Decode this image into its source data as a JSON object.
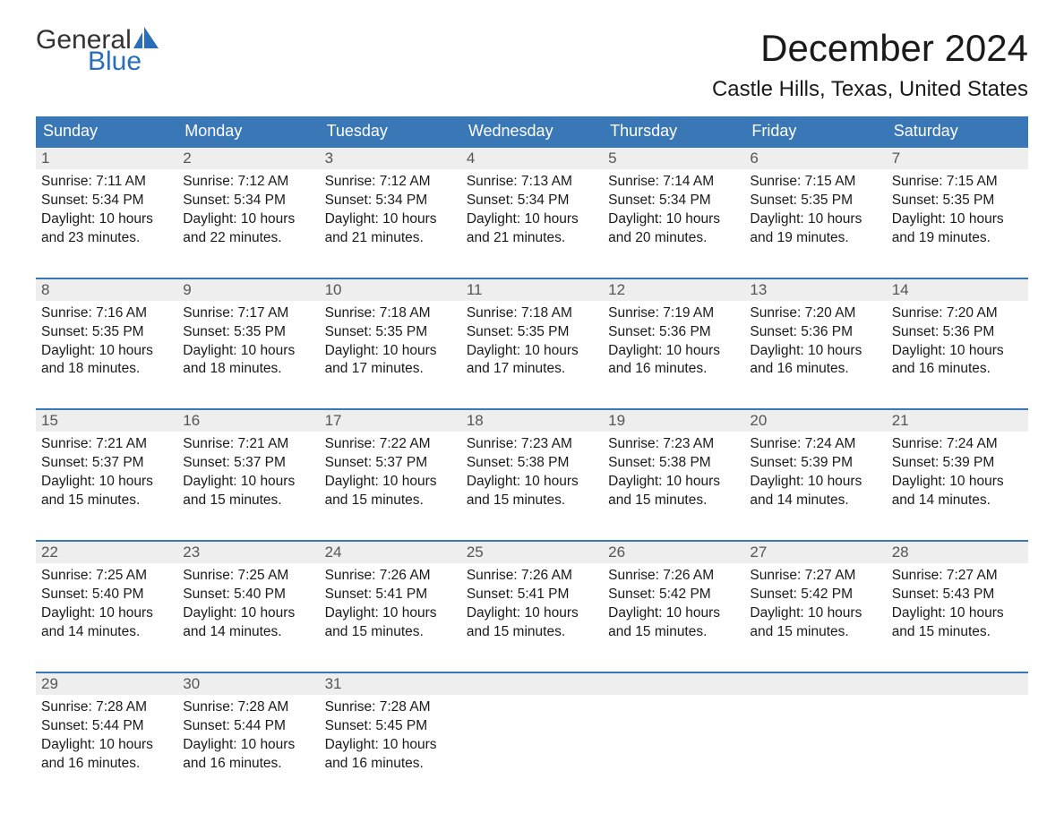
{
  "brand": {
    "word1": "General",
    "word2": "Blue",
    "accent_color": "#2a6db8"
  },
  "title": "December 2024",
  "location": "Castle Hills, Texas, United States",
  "colors": {
    "header_bg": "#3a77b7",
    "header_text": "#ffffff",
    "daynum_bg": "#eeeeee",
    "border": "#3a77b7",
    "body_text": "#1a1a1a"
  },
  "days_of_week": [
    "Sunday",
    "Monday",
    "Tuesday",
    "Wednesday",
    "Thursday",
    "Friday",
    "Saturday"
  ],
  "labels": {
    "sunrise_prefix": "Sunrise: ",
    "sunset_prefix": "Sunset: ",
    "daylight_prefix": "Daylight: ",
    "hours_word": " hours",
    "and_word": "and ",
    "minutes_word": " minutes."
  },
  "weeks": [
    [
      {
        "n": 1,
        "sunrise": "7:11 AM",
        "sunset": "5:34 PM",
        "dl_h": 10,
        "dl_m": 23
      },
      {
        "n": 2,
        "sunrise": "7:12 AM",
        "sunset": "5:34 PM",
        "dl_h": 10,
        "dl_m": 22
      },
      {
        "n": 3,
        "sunrise": "7:12 AM",
        "sunset": "5:34 PM",
        "dl_h": 10,
        "dl_m": 21
      },
      {
        "n": 4,
        "sunrise": "7:13 AM",
        "sunset": "5:34 PM",
        "dl_h": 10,
        "dl_m": 21
      },
      {
        "n": 5,
        "sunrise": "7:14 AM",
        "sunset": "5:34 PM",
        "dl_h": 10,
        "dl_m": 20
      },
      {
        "n": 6,
        "sunrise": "7:15 AM",
        "sunset": "5:35 PM",
        "dl_h": 10,
        "dl_m": 19
      },
      {
        "n": 7,
        "sunrise": "7:15 AM",
        "sunset": "5:35 PM",
        "dl_h": 10,
        "dl_m": 19
      }
    ],
    [
      {
        "n": 8,
        "sunrise": "7:16 AM",
        "sunset": "5:35 PM",
        "dl_h": 10,
        "dl_m": 18
      },
      {
        "n": 9,
        "sunrise": "7:17 AM",
        "sunset": "5:35 PM",
        "dl_h": 10,
        "dl_m": 18
      },
      {
        "n": 10,
        "sunrise": "7:18 AM",
        "sunset": "5:35 PM",
        "dl_h": 10,
        "dl_m": 17
      },
      {
        "n": 11,
        "sunrise": "7:18 AM",
        "sunset": "5:35 PM",
        "dl_h": 10,
        "dl_m": 17
      },
      {
        "n": 12,
        "sunrise": "7:19 AM",
        "sunset": "5:36 PM",
        "dl_h": 10,
        "dl_m": 16
      },
      {
        "n": 13,
        "sunrise": "7:20 AM",
        "sunset": "5:36 PM",
        "dl_h": 10,
        "dl_m": 16
      },
      {
        "n": 14,
        "sunrise": "7:20 AM",
        "sunset": "5:36 PM",
        "dl_h": 10,
        "dl_m": 16
      }
    ],
    [
      {
        "n": 15,
        "sunrise": "7:21 AM",
        "sunset": "5:37 PM",
        "dl_h": 10,
        "dl_m": 15
      },
      {
        "n": 16,
        "sunrise": "7:21 AM",
        "sunset": "5:37 PM",
        "dl_h": 10,
        "dl_m": 15
      },
      {
        "n": 17,
        "sunrise": "7:22 AM",
        "sunset": "5:37 PM",
        "dl_h": 10,
        "dl_m": 15
      },
      {
        "n": 18,
        "sunrise": "7:23 AM",
        "sunset": "5:38 PM",
        "dl_h": 10,
        "dl_m": 15
      },
      {
        "n": 19,
        "sunrise": "7:23 AM",
        "sunset": "5:38 PM",
        "dl_h": 10,
        "dl_m": 15
      },
      {
        "n": 20,
        "sunrise": "7:24 AM",
        "sunset": "5:39 PM",
        "dl_h": 10,
        "dl_m": 14
      },
      {
        "n": 21,
        "sunrise": "7:24 AM",
        "sunset": "5:39 PM",
        "dl_h": 10,
        "dl_m": 14
      }
    ],
    [
      {
        "n": 22,
        "sunrise": "7:25 AM",
        "sunset": "5:40 PM",
        "dl_h": 10,
        "dl_m": 14
      },
      {
        "n": 23,
        "sunrise": "7:25 AM",
        "sunset": "5:40 PM",
        "dl_h": 10,
        "dl_m": 14
      },
      {
        "n": 24,
        "sunrise": "7:26 AM",
        "sunset": "5:41 PM",
        "dl_h": 10,
        "dl_m": 15
      },
      {
        "n": 25,
        "sunrise": "7:26 AM",
        "sunset": "5:41 PM",
        "dl_h": 10,
        "dl_m": 15
      },
      {
        "n": 26,
        "sunrise": "7:26 AM",
        "sunset": "5:42 PM",
        "dl_h": 10,
        "dl_m": 15
      },
      {
        "n": 27,
        "sunrise": "7:27 AM",
        "sunset": "5:42 PM",
        "dl_h": 10,
        "dl_m": 15
      },
      {
        "n": 28,
        "sunrise": "7:27 AM",
        "sunset": "5:43 PM",
        "dl_h": 10,
        "dl_m": 15
      }
    ],
    [
      {
        "n": 29,
        "sunrise": "7:28 AM",
        "sunset": "5:44 PM",
        "dl_h": 10,
        "dl_m": 16
      },
      {
        "n": 30,
        "sunrise": "7:28 AM",
        "sunset": "5:44 PM",
        "dl_h": 10,
        "dl_m": 16
      },
      {
        "n": 31,
        "sunrise": "7:28 AM",
        "sunset": "5:45 PM",
        "dl_h": 10,
        "dl_m": 16
      },
      null,
      null,
      null,
      null
    ]
  ]
}
